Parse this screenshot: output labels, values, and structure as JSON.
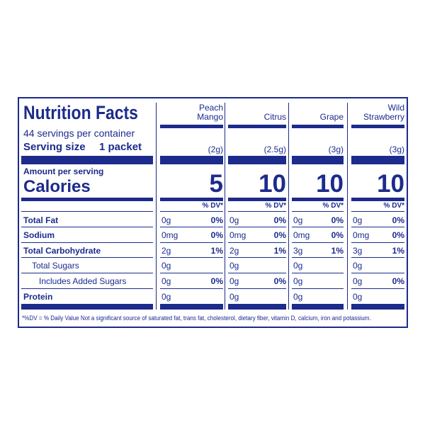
{
  "header": {
    "title": "Nutrition Facts",
    "servings": "44 servings per container",
    "serving_size_label": "Serving size",
    "serving_size_value": "1 packet",
    "amount_label": "Amount per serving",
    "calories_label": "Calories",
    "dv_header": "% DV*"
  },
  "rows": [
    "Total Fat",
    "Sodium",
    "Total Carbohydrate",
    "Total Sugars",
    "Includes Added Sugars",
    "Protein"
  ],
  "columns": [
    {
      "name": "Peach Mango",
      "serving": "(2g)",
      "calories": "5",
      "amounts": [
        "0g",
        "0mg",
        "2g",
        "0g",
        "0g",
        "0g"
      ],
      "dv": [
        "0%",
        "0%",
        "1%",
        null,
        "0%",
        null
      ]
    },
    {
      "name": "Citrus",
      "serving": "(2.5g)",
      "calories": "10",
      "amounts": [
        "0g",
        "0mg",
        "2g",
        "0g",
        "0g",
        "0g"
      ],
      "dv": [
        "0%",
        "0%",
        "1%",
        null,
        "0%",
        null
      ]
    },
    {
      "name": "Grape",
      "serving": "(3g)",
      "calories": "10",
      "amounts": [
        "0g",
        "0mg",
        "3g",
        "0g",
        "0g",
        "0g"
      ],
      "dv": [
        "0%",
        "0%",
        "1%",
        null,
        null,
        null
      ]
    },
    {
      "name": "Wild Strawberry",
      "serving": "(3g)",
      "calories": "10",
      "amounts": [
        "0g",
        "0mg",
        "3g",
        "0g",
        "0g",
        "0g"
      ],
      "dv": [
        "0%",
        "0%",
        "1%",
        null,
        "0%",
        null
      ]
    }
  ],
  "footnote": "*%DV = % Daily Value Not a significant source of saturated fat, trans fat, cholesterol, dietary fiber, vitamin D, calcium, iron and potassium."
}
